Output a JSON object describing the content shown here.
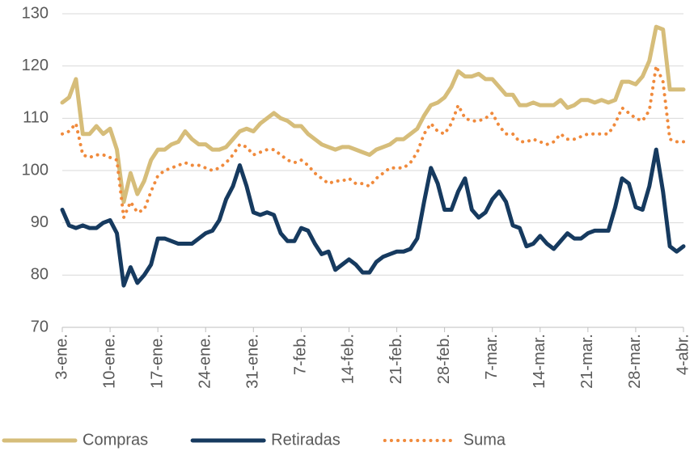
{
  "chart_data": {
    "type": "line",
    "categories": [
      "3-ene.",
      null,
      null,
      null,
      null,
      null,
      null,
      "10-ene.",
      null,
      null,
      null,
      null,
      null,
      null,
      "17-ene.",
      null,
      null,
      null,
      null,
      null,
      null,
      "24-ene.",
      null,
      null,
      null,
      null,
      null,
      null,
      "31-ene.",
      null,
      null,
      null,
      null,
      null,
      null,
      "7-feb.",
      null,
      null,
      null,
      null,
      null,
      null,
      "14-feb.",
      null,
      null,
      null,
      null,
      null,
      null,
      "21-feb.",
      null,
      null,
      null,
      null,
      null,
      null,
      "28-feb.",
      null,
      null,
      null,
      null,
      null,
      null,
      "7-mar.",
      null,
      null,
      null,
      null,
      null,
      null,
      "14-mar.",
      null,
      null,
      null,
      null,
      null,
      null,
      "21-mar.",
      null,
      null,
      null,
      null,
      null,
      null,
      "28-mar.",
      null,
      null,
      null,
      null,
      null,
      null,
      "4-abr."
    ],
    "series": [
      {
        "name": "Compras",
        "color": "#d6bd7a",
        "style": "solid",
        "values": [
          113,
          114,
          117.5,
          107,
          107,
          108.5,
          107,
          108,
          104,
          94,
          99.5,
          95.5,
          98,
          102,
          104,
          104,
          105,
          105.5,
          107.5,
          106,
          105,
          105,
          104,
          104,
          104.5,
          106,
          107.5,
          108,
          107.5,
          109,
          110,
          111,
          110,
          109.5,
          108.5,
          108.5,
          107,
          106,
          105,
          104.5,
          104,
          104.5,
          104.5,
          104,
          103.5,
          103,
          104,
          104.5,
          105,
          106,
          106,
          107,
          108,
          110.5,
          112.5,
          113,
          114,
          116,
          119,
          118,
          118,
          118.5,
          117.5,
          117.5,
          116,
          114.5,
          114.5,
          112.5,
          112.5,
          113,
          112.5,
          112.5,
          112.5,
          113.5,
          112,
          112.5,
          113.5,
          113.5,
          113,
          113.5,
          113,
          113.5,
          117,
          117,
          116.5,
          118,
          121,
          127.5,
          127,
          115.5,
          115.5,
          115.5
        ]
      },
      {
        "name": "Retiradas",
        "color": "#163a5f",
        "style": "solid",
        "values": [
          92.5,
          89.5,
          89,
          89.5,
          89,
          89,
          90,
          90.5,
          88,
          78,
          81.5,
          78.5,
          80,
          82,
          87,
          87,
          86.5,
          86,
          86,
          86,
          87,
          88,
          88.5,
          90.5,
          94.5,
          97,
          101,
          97,
          92,
          91.5,
          92,
          91.5,
          88,
          86.5,
          86.5,
          89,
          88.5,
          86,
          84,
          84.5,
          81,
          82,
          83,
          82,
          80.5,
          80.5,
          82.5,
          83.5,
          84,
          84.5,
          84.5,
          85,
          87,
          94,
          100.5,
          97.5,
          92.5,
          92.5,
          96,
          98.5,
          92.5,
          91,
          92,
          94.5,
          96,
          94,
          89.5,
          89,
          85.5,
          86,
          87.5,
          86,
          85,
          86.5,
          88,
          87,
          87,
          88,
          88.5,
          88.5,
          88.5,
          93,
          98.5,
          97.5,
          93,
          92.5,
          97,
          104,
          96,
          85.5,
          84.5,
          85.5
        ]
      },
      {
        "name": "Suma",
        "color": "#f08a3c",
        "style": "dotted",
        "values": [
          107,
          107.5,
          109,
          103,
          102.5,
          103,
          103,
          102.5,
          102,
          91,
          94,
          92,
          92.5,
          96,
          99,
          100,
          100.5,
          101,
          101.5,
          101,
          101,
          100.5,
          100,
          100.5,
          101.5,
          103,
          105,
          104.5,
          103,
          103.5,
          104,
          104,
          103,
          102,
          101.5,
          102,
          101,
          99.5,
          98.5,
          97.5,
          98,
          98,
          98.5,
          97.5,
          97.5,
          97,
          98.5,
          99.5,
          100.5,
          100.5,
          100.5,
          101.5,
          103.5,
          107,
          109,
          107.5,
          107,
          109,
          112.5,
          110,
          109.5,
          109.5,
          110,
          111,
          108.5,
          107,
          107,
          105.5,
          105.5,
          106,
          105.5,
          105,
          105.5,
          107,
          106,
          106,
          106.5,
          107,
          107,
          107,
          107,
          109,
          112,
          111,
          110,
          109.5,
          111.5,
          120,
          117,
          106,
          105.5,
          105.5
        ]
      }
    ],
    "ylim": [
      70,
      130
    ],
    "yticks": [
      70,
      80,
      90,
      100,
      110,
      120,
      130
    ],
    "grid": true,
    "legend": "bottom"
  }
}
